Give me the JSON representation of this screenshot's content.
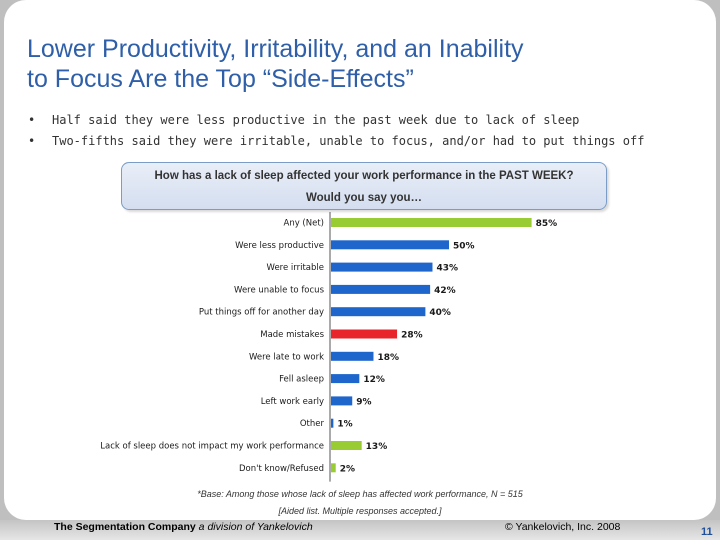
{
  "slide": {
    "title_line1": "Lower Productivity, Irritability, and an Inability",
    "title_line2": "to Focus Are the Top “Side-Effects”",
    "bullets": [
      "Half said they were less productive in the past week due to lack of sleep",
      "Two-fifths said they were irritable, unable to focus, and/or had to put things off"
    ],
    "bullet_symbol": "•",
    "question_line1": "How has a lack of sleep affected your work performance in the PAST WEEK?",
    "question_line2": "Would you say you…",
    "base_note": "*Base: Among those whose lack of sleep has affected work performance, N = 515",
    "aided_note": "[Aided list. Multiple responses accepted.]",
    "footer_company": "The Segmentation Company",
    "footer_division": " a division of Yankelovich",
    "footer_copyright": "© Yankelovich, Inc. 2008",
    "page_number": "11"
  },
  "chart_data": {
    "type": "bar",
    "orientation": "horizontal",
    "categories": [
      "Any (Net)",
      "Were less productive",
      "Were irritable",
      "Were unable to focus",
      "Put things off for another day",
      "Made mistakes",
      "Were late to work",
      "Fell asleep",
      "Left work early",
      "Other",
      "Lack of sleep does not impact my work performance",
      "Don't know/Refused"
    ],
    "values": [
      85,
      50,
      43,
      42,
      40,
      28,
      18,
      12,
      9,
      1,
      13,
      2
    ],
    "value_labels": [
      "85%",
      "50%",
      "43%",
      "42%",
      "40%",
      "28%",
      "18%",
      "12%",
      "9%",
      "1%",
      "13%",
      "2%"
    ],
    "bar_colors": [
      "#99cc33",
      "#1f66cc",
      "#1f66cc",
      "#1f66cc",
      "#1f66cc",
      "#e8252b",
      "#1f66cc",
      "#1f66cc",
      "#1f66cc",
      "#1f66cc",
      "#99cc33",
      "#99cc33"
    ],
    "xlim": [
      0,
      100
    ],
    "grid": false
  }
}
